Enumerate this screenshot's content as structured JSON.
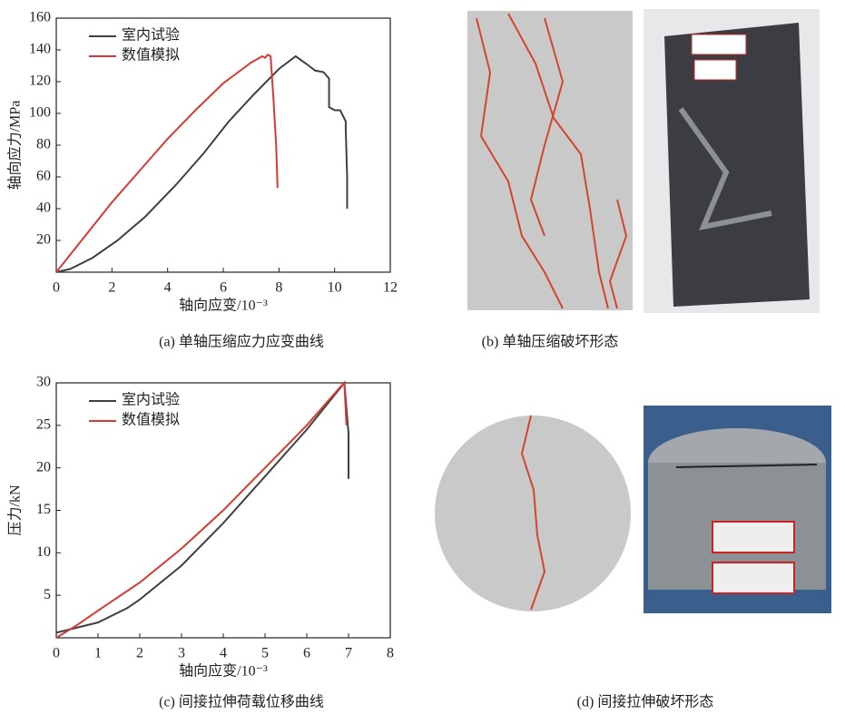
{
  "chart_data": [
    {
      "type": "line",
      "caption": "(a) 单轴压缩应力应变曲线",
      "xlabel": "轴向应变/10⁻³",
      "ylabel": "轴向应力/MPa",
      "xlim": [
        0,
        12
      ],
      "ylim": [
        0,
        160
      ],
      "xticks": [
        0,
        2,
        4,
        6,
        8,
        10,
        12
      ],
      "yticks": [
        20,
        40,
        60,
        80,
        100,
        120,
        140,
        160
      ],
      "legend": "upper left",
      "series": [
        {
          "name": "室内试验",
          "color": "#404040",
          "x": [
            0,
            0.5,
            1.3,
            2.2,
            3.2,
            4.3,
            5.3,
            6.2,
            7.1,
            8,
            8.6,
            9,
            9.3,
            9.6,
            9.8,
            9.8,
            10,
            10.2,
            10.4,
            10.4,
            10.45,
            10.45
          ],
          "values": [
            0,
            2,
            9,
            20,
            35,
            55,
            75,
            95,
            112,
            128,
            136,
            131,
            127,
            126,
            122,
            104,
            102,
            102,
            95,
            90,
            60,
            40
          ]
        },
        {
          "name": "数值模拟",
          "color": "#d63a35",
          "x": [
            0,
            1,
            2,
            3,
            4,
            5,
            6,
            7,
            7.4,
            7.5,
            7.6,
            7.7,
            7.8,
            7.9,
            7.95
          ],
          "values": [
            0,
            22,
            44,
            64,
            84,
            102,
            119,
            132,
            136,
            135,
            137,
            136,
            110,
            80,
            53
          ]
        }
      ]
    },
    {
      "type": "line",
      "caption": "(c) 间接拉伸荷载位移曲线",
      "xlabel": "轴向应变/10⁻³",
      "ylabel": "压力/kN",
      "xlim": [
        0,
        8
      ],
      "ylim": [
        0,
        30
      ],
      "xticks": [
        0,
        1,
        2,
        3,
        4,
        5,
        6,
        7,
        8
      ],
      "yticks": [
        5,
        10,
        15,
        20,
        25,
        30
      ],
      "legend": "upper left",
      "series": [
        {
          "name": "室内试验",
          "color": "#404040",
          "x": [
            0,
            1,
            1.7,
            2,
            3,
            4,
            5,
            6,
            6.9,
            7,
            7
          ],
          "values": [
            0.6,
            1.8,
            3.5,
            4.5,
            8.5,
            13.5,
            19,
            24.5,
            30,
            24,
            18.7
          ]
        },
        {
          "name": "数值模拟",
          "color": "#d63a35",
          "x": [
            0,
            0.5,
            1,
            2,
            3,
            4,
            5,
            6,
            6.8,
            6.9,
            6.95
          ],
          "values": [
            0,
            1.5,
            3.2,
            6.5,
            10.5,
            15,
            20,
            25,
            29.5,
            30,
            25
          ]
        }
      ]
    }
  ],
  "images": [
    {
      "caption": "(b) 单轴压缩破坏形态"
    },
    {
      "caption": "(d) 间接拉伸破坏形态"
    }
  ]
}
